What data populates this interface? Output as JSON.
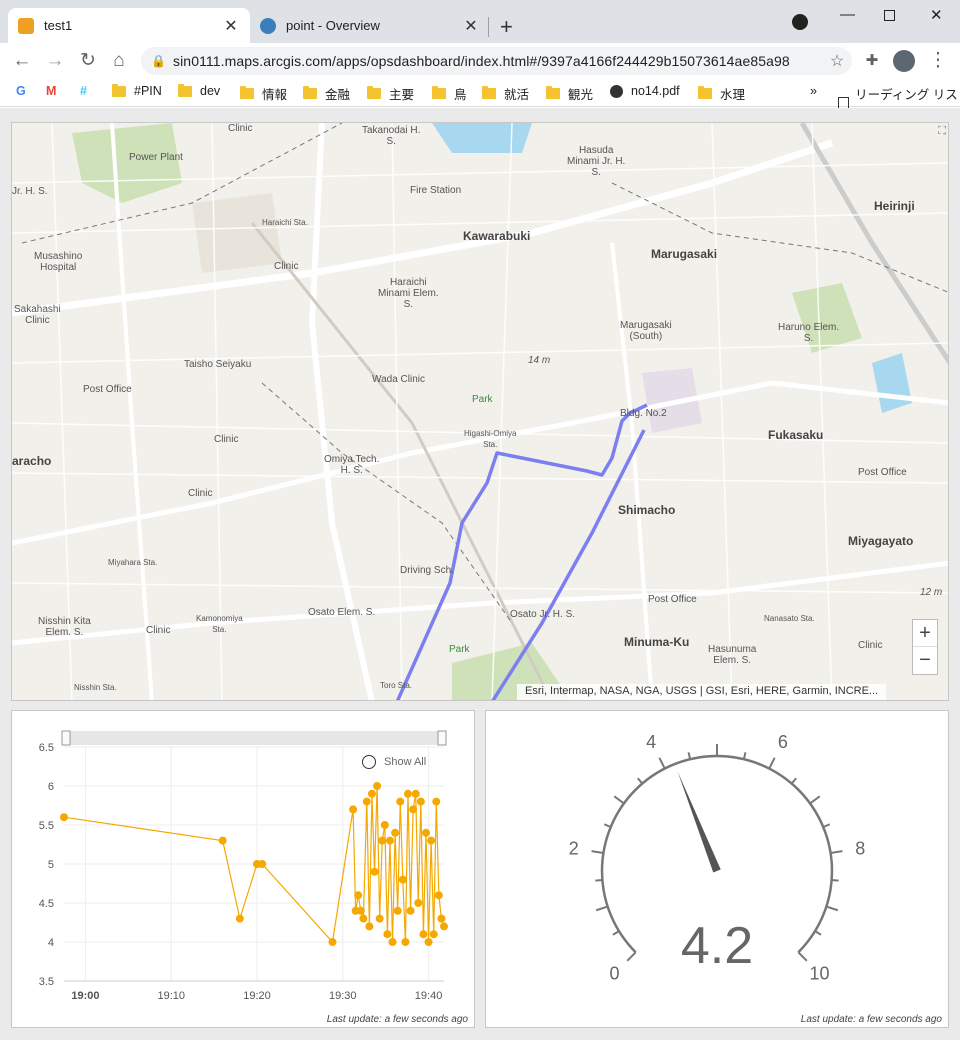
{
  "browser": {
    "tabs": [
      {
        "title": "test1",
        "active": true
      },
      {
        "title": "point - Overview",
        "active": false
      }
    ],
    "url": "sin0111.maps.arcgis.com/apps/opsdashboard/index.html#/9397a4166f244429b15073614ae85a98",
    "bookmarks": [
      "#PIN",
      "dev",
      "情報",
      "金融",
      "主要",
      "鳥",
      "就活",
      "観光",
      "no14.pdf",
      "水理"
    ],
    "reading_list": "リーディング リスト"
  },
  "map": {
    "attribution": "Esri, Intermap, NASA, NGA, USGS | GSI, Esri, HERE, Garmin, INCRE...",
    "labels": [
      {
        "text": "Clinic"
      },
      {
        "text": "Takanodai H.\nS."
      },
      {
        "text": "Hasuda\nMinami Jr. H.\nS."
      },
      {
        "text": "Power Plant"
      },
      {
        "text": "Fire Station"
      },
      {
        "text": "Jr. H. S."
      },
      {
        "text": "Heirinji"
      },
      {
        "text": "Haraichi Sta."
      },
      {
        "text": "Kawarabuki"
      },
      {
        "text": "Marugasaki"
      },
      {
        "text": "Musashino\nHospital"
      },
      {
        "text": "Clinic"
      },
      {
        "text": "Haraichi\nMinami Elem.\nS."
      },
      {
        "text": "Sakahashi\nClinic"
      },
      {
        "text": "Marugasaki\n(South)"
      },
      {
        "text": "Haruno Elem.\nS."
      },
      {
        "text": "Taisho Seiyaku"
      },
      {
        "text": "14 m"
      },
      {
        "text": "Post Office"
      },
      {
        "text": "Wada Clinic"
      },
      {
        "text": "Park"
      },
      {
        "text": "Bldg. No.2"
      },
      {
        "text": "Higashi-Omiya\nSta."
      },
      {
        "text": "Clinic"
      },
      {
        "text": "Fukasaku"
      },
      {
        "text": "aracho"
      },
      {
        "text": "Omiya Tech.\nH. S."
      },
      {
        "text": "Post Office"
      },
      {
        "text": "Clinic"
      },
      {
        "text": "Shimacho"
      },
      {
        "text": "Miyagayato"
      },
      {
        "text": "Miyahara Sta."
      },
      {
        "text": "Driving Sch."
      },
      {
        "text": "12 m"
      },
      {
        "text": "Post Office"
      },
      {
        "text": "Nisshin Kita\nElem. S."
      },
      {
        "text": "Osato Elem. S."
      },
      {
        "text": "Osato Jr. H. S."
      },
      {
        "text": "Kamonomiya\nSta."
      },
      {
        "text": "Clinic"
      },
      {
        "text": "Nanasato Sta."
      },
      {
        "text": "Minuma-Ku"
      },
      {
        "text": "Park"
      },
      {
        "text": "Hasunuma\nElem. S."
      },
      {
        "text": "Clinic"
      },
      {
        "text": "Nisshin Sta."
      },
      {
        "text": "Toro Sta."
      }
    ]
  },
  "chart_data": {
    "type": "line",
    "xlabel": "",
    "ylabel": "",
    "ylim": [
      3.5,
      6.5
    ],
    "y_ticks": [
      "3.5",
      "4",
      "4.5",
      "5",
      "5.5",
      "6",
      "6.5"
    ],
    "x_ticks": [
      "19:00",
      "19:10",
      "19:20",
      "19:30",
      "19:40"
    ],
    "series": [
      {
        "color": "#f5a800",
        "x": [
          "18:57.5",
          "19:16.0",
          "19:18.0",
          "19:20.0",
          "19:20.6",
          "19:28.8",
          "19:31.2",
          "19:31.5",
          "19:31.8",
          "19:32.1",
          "19:32.4",
          "19:32.8",
          "19:33.1",
          "19:33.4",
          "19:33.7",
          "19:34.0",
          "19:34.3",
          "19:34.6",
          "19:34.9",
          "19:35.2",
          "19:35.5",
          "19:35.8",
          "19:36.1",
          "19:36.4",
          "19:36.7",
          "19:37.0",
          "19:37.3",
          "19:37.6",
          "19:37.9",
          "19:38.2",
          "19:38.5",
          "19:38.8",
          "19:39.1",
          "19:39.4",
          "19:39.7",
          "19:40.0",
          "19:40.3",
          "19:40.6",
          "19:40.9",
          "19:41.2",
          "19:41.5",
          "19:41.8"
        ],
        "values": [
          5.6,
          5.3,
          4.3,
          5.0,
          5.0,
          4.0,
          5.7,
          4.4,
          4.6,
          4.4,
          4.3,
          5.8,
          4.2,
          5.9,
          4.9,
          6.0,
          4.3,
          5.3,
          5.5,
          4.1,
          5.3,
          4.0,
          5.4,
          4.4,
          5.8,
          4.8,
          4.0,
          5.9,
          4.4,
          5.7,
          5.9,
          4.5,
          5.8,
          4.1,
          5.4,
          4.0,
          5.3,
          4.1,
          5.8,
          4.6,
          4.3,
          4.2
        ]
      }
    ],
    "show_all_label": "Show All",
    "last_update": "Last update: a few seconds ago"
  },
  "gauge": {
    "value": 4.2,
    "display": "4.2",
    "min": 0,
    "max": 10,
    "tick_labels": [
      "0",
      "2",
      "4",
      "6",
      "8",
      "10"
    ],
    "last_update": "Last update: a few seconds ago"
  }
}
